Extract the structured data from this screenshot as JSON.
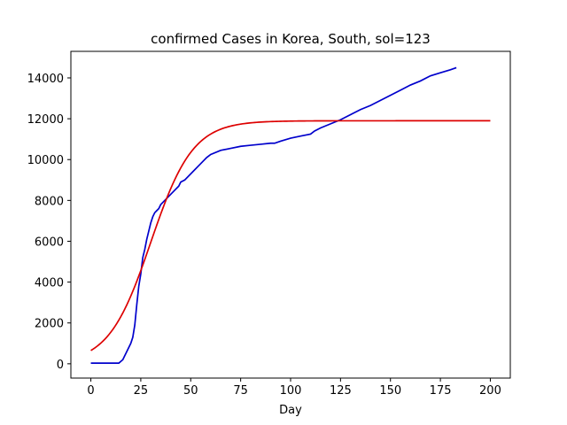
{
  "chart_data": {
    "type": "line",
    "title": "confirmed Cases in Korea, South, sol=123",
    "xlabel": "Day",
    "ylabel": "",
    "xlim": [
      -10,
      210
    ],
    "ylim": [
      -700,
      15300
    ],
    "xticks": [
      0,
      25,
      50,
      75,
      100,
      125,
      150,
      175,
      200
    ],
    "yticks": [
      0,
      2000,
      4000,
      6000,
      8000,
      10000,
      12000,
      14000
    ],
    "grid": false,
    "series": [
      {
        "color": "#0000cc",
        "x": [
          0,
          5,
          10,
          14,
          16,
          18,
          20,
          21,
          22,
          23,
          24,
          25,
          26,
          27,
          28,
          29,
          30,
          31,
          32,
          33,
          34,
          35,
          36,
          38,
          40,
          42,
          44,
          45,
          47,
          50,
          55,
          58,
          60,
          65,
          70,
          75,
          80,
          85,
          90,
          92,
          95,
          100,
          105,
          110,
          112,
          115,
          120,
          125,
          130,
          135,
          140,
          145,
          150,
          155,
          160,
          165,
          170,
          175,
          180,
          183
        ],
        "y": [
          30,
          30,
          30,
          30,
          200,
          600,
          1000,
          1300,
          1900,
          2900,
          3800,
          4400,
          5200,
          5600,
          6100,
          6500,
          6900,
          7200,
          7400,
          7500,
          7600,
          7800,
          7900,
          8100,
          8300,
          8500,
          8700,
          8900,
          9000,
          9300,
          9800,
          10100,
          10250,
          10450,
          10550,
          10650,
          10700,
          10750,
          10800,
          10800,
          10900,
          11050,
          11150,
          11250,
          11400,
          11550,
          11750,
          11950,
          12200,
          12450,
          12650,
          12900,
          13150,
          13400,
          13650,
          13850,
          14100,
          14250,
          14400,
          14500
        ]
      },
      {
        "color": "#dd0000",
        "model": {
          "K": 11900,
          "x0": 30,
          "r": 0.095,
          "x_start": 0,
          "x_end": 200
        }
      }
    ]
  }
}
